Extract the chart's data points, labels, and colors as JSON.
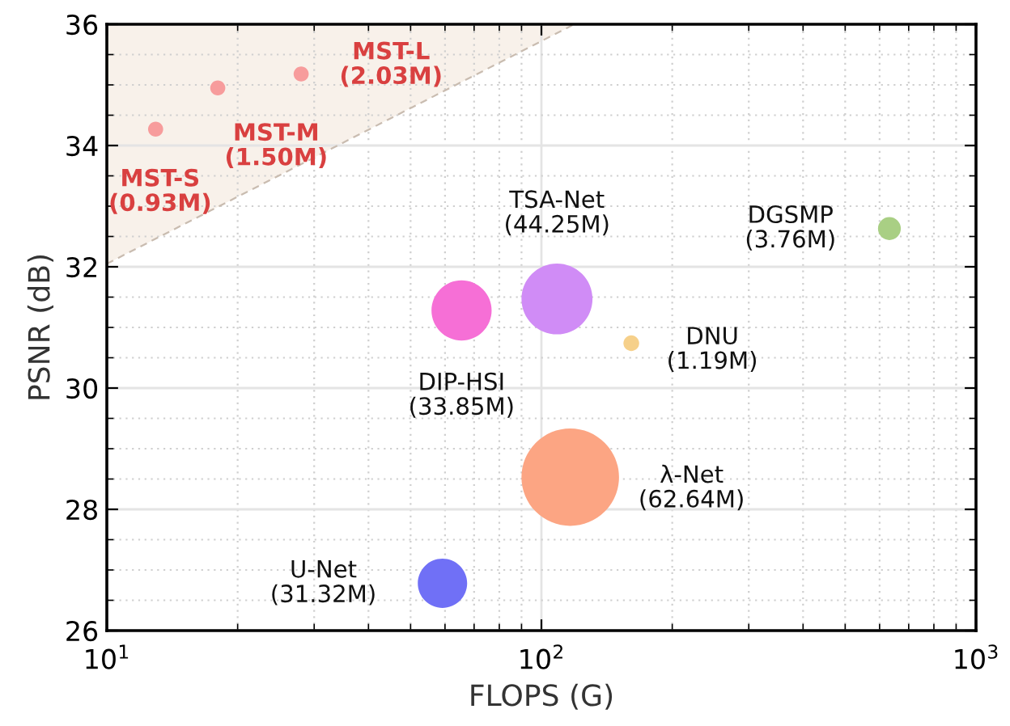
{
  "chart_data": {
    "type": "bubble",
    "xlabel": "FLOPS (G)",
    "ylabel": "PSNR (dB)",
    "log": "x",
    "xlim": [
      10,
      1000
    ],
    "xticks": [
      {
        "value": 10,
        "label": "10$^{1}$"
      },
      {
        "value": 100,
        "label": "10$^{2}$"
      },
      {
        "value": 1000,
        "label": "10$^{3}$"
      }
    ],
    "ylim": [
      26,
      36
    ],
    "yticks": [
      26,
      28,
      30,
      32,
      34,
      36
    ],
    "grid": true,
    "series": [
      {
        "type": "area",
        "color": "#f8f1ea",
        "line_style": "dashed",
        "x": [
          10,
          119
        ],
        "values": [
          32.05,
          36
        ]
      },
      {
        "color": "#f79c9c",
        "x": [
          12.95,
          18.0,
          28.0
        ],
        "values": [
          34.27,
          34.95,
          35.18
        ],
        "sizes": [
          0.024,
          0.024,
          0.024
        ]
      },
      {
        "color": "#d08cf6",
        "x": [
          108.6
        ],
        "values": [
          31.47
        ],
        "sizes": [
          0.53
        ]
      },
      {
        "color": "#a9cf84",
        "x": [
          632
        ],
        "values": [
          32.63
        ],
        "sizes": [
          0.055
        ]
      },
      {
        "color": "#f66fd6",
        "x": [
          65.5
        ],
        "values": [
          31.28
        ],
        "sizes": [
          0.38
        ]
      },
      {
        "color": "#f6d08a",
        "x": [
          161
        ],
        "values": [
          30.74
        ],
        "sizes": [
          0.026
        ]
      },
      {
        "color": "#fca583",
        "x": [
          116.5
        ],
        "values": [
          28.53
        ],
        "sizes": [
          1
        ]
      },
      {
        "color": "#7070f6",
        "x": [
          59.2
        ],
        "values": [
          26.78
        ],
        "sizes": [
          0.256
        ]
      }
    ],
    "annotations": [
      {
        "text": "MST-S\n(0.93M)",
        "x": 12.95,
        "y": 34.27
      },
      {
        "text": "MST-M\n(1.50M)",
        "x": 18.0,
        "y": 34.95
      },
      {
        "text": "MST-L\n(2.03M)",
        "x": 28.0,
        "y": 35.18
      },
      {
        "text": "TSA-Net\n(44.25M)",
        "x": 108.6,
        "y": 31.47
      },
      {
        "text": "DGSMP\n(3.76M)",
        "x": 632,
        "y": 32.63
      },
      {
        "text": "DIP-HSI\n(33.85M)",
        "x": 65.5,
        "y": 31.28
      },
      {
        "text": "DNU\n(1.19M)",
        "x": 161,
        "y": 30.74
      },
      {
        "text": "λ-Net\n(62.64M)",
        "x": 116.5,
        "y": 28.53
      },
      {
        "text": "U-Net\n(31.32M)",
        "x": 59.2,
        "y": 26.78
      }
    ]
  }
}
